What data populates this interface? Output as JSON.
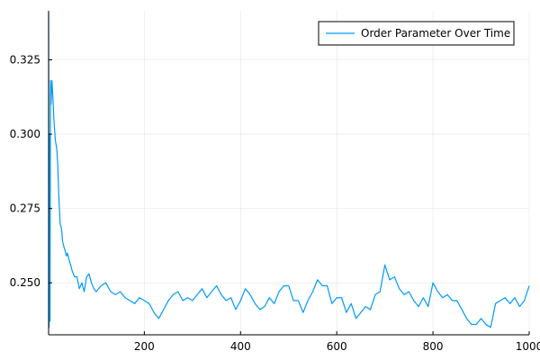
{
  "chart_data": {
    "type": "line",
    "title": "",
    "xlabel": "",
    "ylabel": "",
    "xlim": [
      1,
      1000
    ],
    "ylim": [
      0.2325,
      0.3415
    ],
    "grid": true,
    "legend_position": "top-right",
    "x_ticks": [
      200,
      400,
      600,
      800,
      1000
    ],
    "x_tick_labels": [
      "200",
      "400",
      "600",
      "800",
      "1000"
    ],
    "y_ticks": [
      0.25,
      0.275,
      0.3,
      0.325
    ],
    "y_tick_labels": [
      "0.250",
      "0.275",
      "0.300",
      "0.325"
    ],
    "series": [
      {
        "name": "Order Parameter Over Time",
        "color": "#009af9",
        "x": [
          1,
          2,
          3,
          4,
          5,
          6,
          8,
          10,
          12,
          15,
          18,
          20,
          22,
          25,
          28,
          30,
          33,
          35,
          38,
          40,
          45,
          50,
          55,
          60,
          65,
          70,
          75,
          80,
          85,
          90,
          95,
          100,
          110,
          120,
          130,
          140,
          150,
          160,
          170,
          180,
          190,
          200,
          210,
          220,
          230,
          240,
          250,
          260,
          270,
          280,
          290,
          300,
          310,
          320,
          330,
          340,
          350,
          360,
          370,
          380,
          390,
          400,
          410,
          420,
          430,
          440,
          450,
          460,
          470,
          480,
          490,
          500,
          510,
          520,
          530,
          540,
          550,
          560,
          570,
          580,
          590,
          600,
          610,
          620,
          630,
          640,
          650,
          660,
          670,
          680,
          690,
          700,
          710,
          720,
          730,
          740,
          750,
          760,
          770,
          780,
          790,
          800,
          810,
          820,
          830,
          840,
          850,
          860,
          870,
          880,
          890,
          900,
          910,
          920,
          930,
          940,
          950,
          960,
          970,
          980,
          990,
          1000
        ],
        "y": [
          0.341,
          0.235,
          0.3,
          0.237,
          0.318,
          0.31,
          0.318,
          0.312,
          0.305,
          0.298,
          0.295,
          0.29,
          0.28,
          0.27,
          0.268,
          0.264,
          0.262,
          0.261,
          0.259,
          0.26,
          0.257,
          0.254,
          0.252,
          0.252,
          0.248,
          0.25,
          0.247,
          0.252,
          0.253,
          0.25,
          0.248,
          0.247,
          0.249,
          0.25,
          0.247,
          0.246,
          0.247,
          0.245,
          0.244,
          0.243,
          0.245,
          0.244,
          0.243,
          0.24,
          0.238,
          0.241,
          0.244,
          0.246,
          0.247,
          0.244,
          0.245,
          0.244,
          0.246,
          0.248,
          0.245,
          0.247,
          0.249,
          0.246,
          0.244,
          0.245,
          0.241,
          0.244,
          0.248,
          0.246,
          0.243,
          0.241,
          0.242,
          0.245,
          0.243,
          0.247,
          0.249,
          0.249,
          0.244,
          0.244,
          0.24,
          0.244,
          0.247,
          0.251,
          0.249,
          0.249,
          0.243,
          0.245,
          0.245,
          0.24,
          0.243,
          0.238,
          0.24,
          0.242,
          0.241,
          0.246,
          0.247,
          0.256,
          0.251,
          0.252,
          0.248,
          0.246,
          0.247,
          0.244,
          0.242,
          0.245,
          0.242,
          0.25,
          0.247,
          0.245,
          0.246,
          0.244,
          0.244,
          0.241,
          0.238,
          0.236,
          0.236,
          0.238,
          0.236,
          0.235,
          0.243,
          0.244,
          0.245,
          0.243,
          0.245,
          0.242,
          0.244,
          0.249
        ]
      }
    ]
  }
}
